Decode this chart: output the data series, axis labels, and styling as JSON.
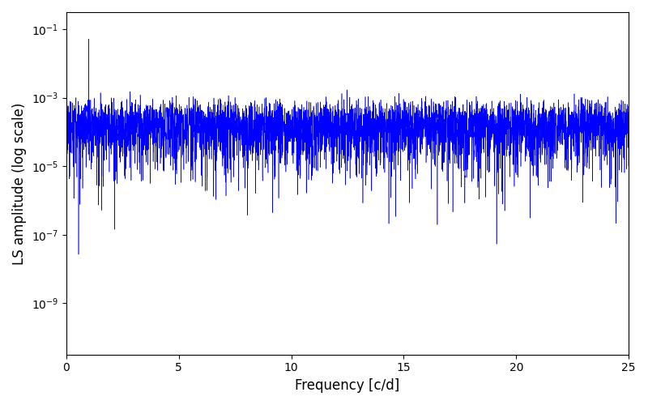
{
  "title": "",
  "xlabel": "Frequency [c/d]",
  "ylabel": "LS amplitude (log scale)",
  "line_color": "#0000ff",
  "xlim": [
    0,
    25
  ],
  "ylim_log_min": -10.5,
  "ylim_log_max": -0.5,
  "xticks": [
    0,
    5,
    10,
    15,
    20,
    25
  ],
  "background_color": "#ffffff",
  "figsize": [
    8.0,
    5.0
  ],
  "dpi": 100,
  "seed": 42,
  "n_freq": 5000,
  "freq_max": 25.0,
  "linewidth": 0.4
}
